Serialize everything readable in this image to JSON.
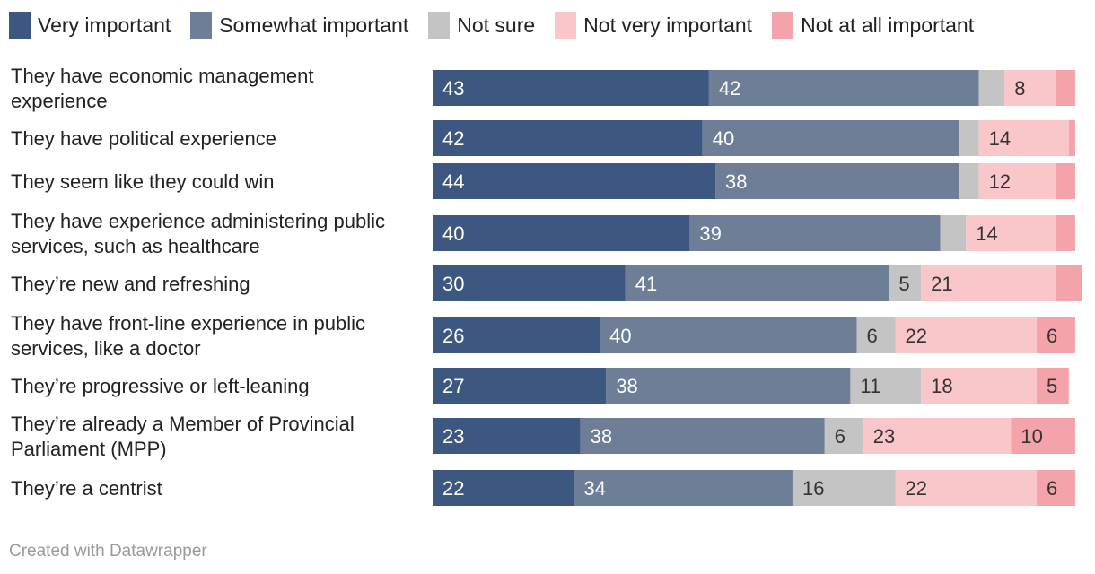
{
  "chart_data": {
    "type": "bar",
    "orientation": "horizontal",
    "stacked": true,
    "legend_position": "top-left",
    "legend": [
      {
        "name": "Very important",
        "color": "#3c5780"
      },
      {
        "name": "Somewhat important",
        "color": "#6e7e96"
      },
      {
        "name": "Not sure",
        "color": "#c4c4c4"
      },
      {
        "name": "Not very important",
        "color": "#f9c6c9"
      },
      {
        "name": "Not at all important",
        "color": "#f5a3aa"
      }
    ],
    "categories": [
      [
        "They have economic management",
        "experience"
      ],
      [
        "They have political experience"
      ],
      [
        "They seem like they could win"
      ],
      [
        "They have experience administering public",
        "services, such as healthcare"
      ],
      [
        "They’re new and refreshing"
      ],
      [
        "They have front-line experience in public",
        "services, like a doctor"
      ],
      [
        "They’re progressive or left-leaning"
      ],
      [
        "They’re already a Member of Provincial",
        "Parliament (MPP)"
      ],
      [
        "They’re a centrist"
      ]
    ],
    "series": [
      {
        "name": "Very important",
        "values": [
          43,
          42,
          44,
          40,
          30,
          26,
          27,
          23,
          22
        ]
      },
      {
        "name": "Somewhat important",
        "values": [
          42,
          40,
          38,
          39,
          41,
          40,
          38,
          38,
          34
        ]
      },
      {
        "name": "Not sure",
        "values": [
          4,
          3,
          3,
          4,
          5,
          6,
          11,
          6,
          16
        ]
      },
      {
        "name": "Not very important",
        "values": [
          8,
          14,
          12,
          14,
          21,
          22,
          18,
          23,
          22
        ]
      },
      {
        "name": "Not at all important",
        "values": [
          3,
          1,
          3,
          3,
          4,
          6,
          5,
          10,
          6
        ]
      }
    ],
    "value_labels": [
      [
        "43",
        "42",
        "",
        "8",
        ""
      ],
      [
        "42",
        "40",
        "",
        "14",
        ""
      ],
      [
        "44",
        "38",
        "",
        "12",
        ""
      ],
      [
        "40",
        "39",
        "",
        "14",
        ""
      ],
      [
        "30",
        "41",
        "5",
        "21",
        ""
      ],
      [
        "26",
        "40",
        "6",
        "22",
        "6"
      ],
      [
        "27",
        "38",
        "11",
        "18",
        "5"
      ],
      [
        "23",
        "38",
        "6",
        "23",
        "10"
      ],
      [
        "22",
        "34",
        "16",
        "22",
        "6"
      ]
    ],
    "label_colors": [
      "#ffffff",
      "#ffffff",
      "#333333",
      "#333333",
      "#333333"
    ],
    "xlim": [
      0,
      100
    ]
  },
  "footer": {
    "credit": "Created with Datawrapper"
  }
}
